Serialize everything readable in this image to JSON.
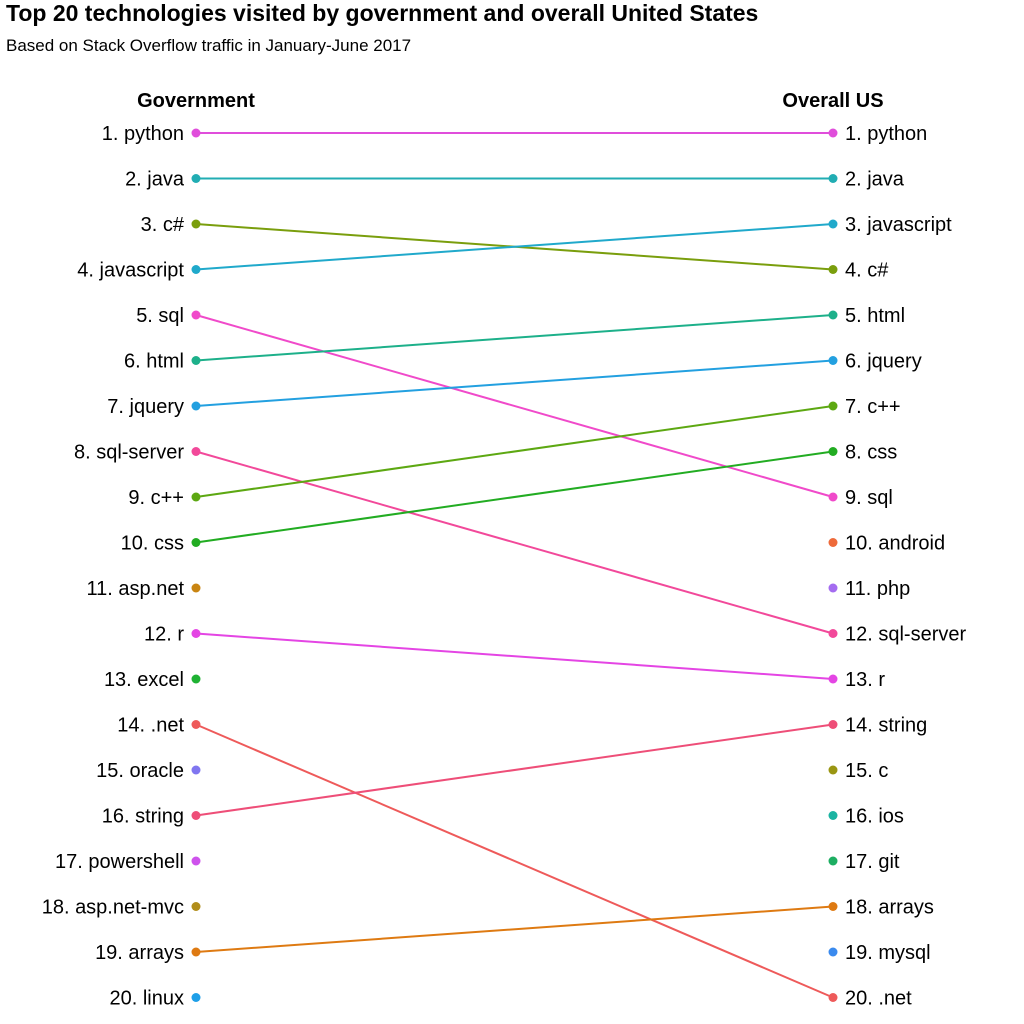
{
  "title": "Top 20 technologies visited by government and overall United States",
  "subtitle": "Based on Stack Overflow traffic in January-June 2017",
  "chart_data": {
    "type": "slope",
    "left_header": "Government",
    "right_header": "Overall US",
    "left": [
      {
        "rank": 1,
        "tag": "python",
        "label": "1. python",
        "color": "#E04EDB"
      },
      {
        "rank": 2,
        "tag": "java",
        "label": "2. java",
        "color": "#21ADB3"
      },
      {
        "rank": 3,
        "tag": "c#",
        "label": "3. c#",
        "color": "#7A9E0D"
      },
      {
        "rank": 4,
        "tag": "javascript",
        "label": "4. javascript",
        "color": "#20A9CB"
      },
      {
        "rank": 5,
        "tag": "sql",
        "label": "5. sql",
        "color": "#F04ACA"
      },
      {
        "rank": 6,
        "tag": "html",
        "label": "6. html",
        "color": "#1DB08A"
      },
      {
        "rank": 7,
        "tag": "jquery",
        "label": "7. jquery",
        "color": "#23A0E0"
      },
      {
        "rank": 8,
        "tag": "sql-server",
        "label": "8. sql-server",
        "color": "#F2499A"
      },
      {
        "rank": 9,
        "tag": "c++",
        "label": "9. c++",
        "color": "#5DA812"
      },
      {
        "rank": 10,
        "tag": "css",
        "label": "10. css",
        "color": "#22AC22"
      },
      {
        "rank": 11,
        "tag": "asp.net",
        "label": "11. asp.net",
        "color": "#C98512"
      },
      {
        "rank": 12,
        "tag": "r",
        "label": "12. r",
        "color": "#E445E4"
      },
      {
        "rank": 13,
        "tag": "excel",
        "label": "13. excel",
        "color": "#1FB233"
      },
      {
        "rank": 14,
        "tag": ".net",
        "label": "14. .net",
        "color": "#EE5A5A"
      },
      {
        "rank": 15,
        "tag": "oracle",
        "label": "15. oracle",
        "color": "#8076F0"
      },
      {
        "rank": 16,
        "tag": "string",
        "label": "16. string",
        "color": "#EE4E78"
      },
      {
        "rank": 17,
        "tag": "powershell",
        "label": "17. powershell",
        "color": "#CE52EC"
      },
      {
        "rank": 18,
        "tag": "asp.net-mvc",
        "label": "18. asp.net-mvc",
        "color": "#B18D1A"
      },
      {
        "rank": 19,
        "tag": "arrays",
        "label": "19. arrays",
        "color": "#DE7A12"
      },
      {
        "rank": 20,
        "tag": "linux",
        "label": "20. linux",
        "color": "#1E9FE8"
      }
    ],
    "right": [
      {
        "rank": 1,
        "tag": "python",
        "label": "1. python",
        "color": "#E04EDB"
      },
      {
        "rank": 2,
        "tag": "java",
        "label": "2. java",
        "color": "#21ADB3"
      },
      {
        "rank": 3,
        "tag": "javascript",
        "label": "3. javascript",
        "color": "#20A9CB"
      },
      {
        "rank": 4,
        "tag": "c#",
        "label": "4. c#",
        "color": "#7A9E0D"
      },
      {
        "rank": 5,
        "tag": "html",
        "label": "5. html",
        "color": "#1DB08A"
      },
      {
        "rank": 6,
        "tag": "jquery",
        "label": "6. jquery",
        "color": "#23A0E0"
      },
      {
        "rank": 7,
        "tag": "c++",
        "label": "7. c++",
        "color": "#5DA812"
      },
      {
        "rank": 8,
        "tag": "css",
        "label": "8. css",
        "color": "#22AC22"
      },
      {
        "rank": 9,
        "tag": "sql",
        "label": "9. sql",
        "color": "#F04ACA"
      },
      {
        "rank": 10,
        "tag": "android",
        "label": "10. android",
        "color": "#EE6A3A"
      },
      {
        "rank": 11,
        "tag": "php",
        "label": "11. php",
        "color": "#A46CF0"
      },
      {
        "rank": 12,
        "tag": "sql-server",
        "label": "12. sql-server",
        "color": "#F2499A"
      },
      {
        "rank": 13,
        "tag": "r",
        "label": "13. r",
        "color": "#E445E4"
      },
      {
        "rank": 14,
        "tag": "string",
        "label": "14. string",
        "color": "#EE4E78"
      },
      {
        "rank": 15,
        "tag": "c",
        "label": "15. c",
        "color": "#9A9612"
      },
      {
        "rank": 16,
        "tag": "ios",
        "label": "16. ios",
        "color": "#1BB4A2"
      },
      {
        "rank": 17,
        "tag": "git",
        "label": "17. git",
        "color": "#1DAE62"
      },
      {
        "rank": 18,
        "tag": "arrays",
        "label": "18. arrays",
        "color": "#DE7A12"
      },
      {
        "rank": 19,
        "tag": "mysql",
        "label": "19. mysql",
        "color": "#3A8AEE"
      },
      {
        "rank": 20,
        "tag": ".net",
        "label": "20. .net",
        "color": "#EE5A5A"
      }
    ]
  }
}
